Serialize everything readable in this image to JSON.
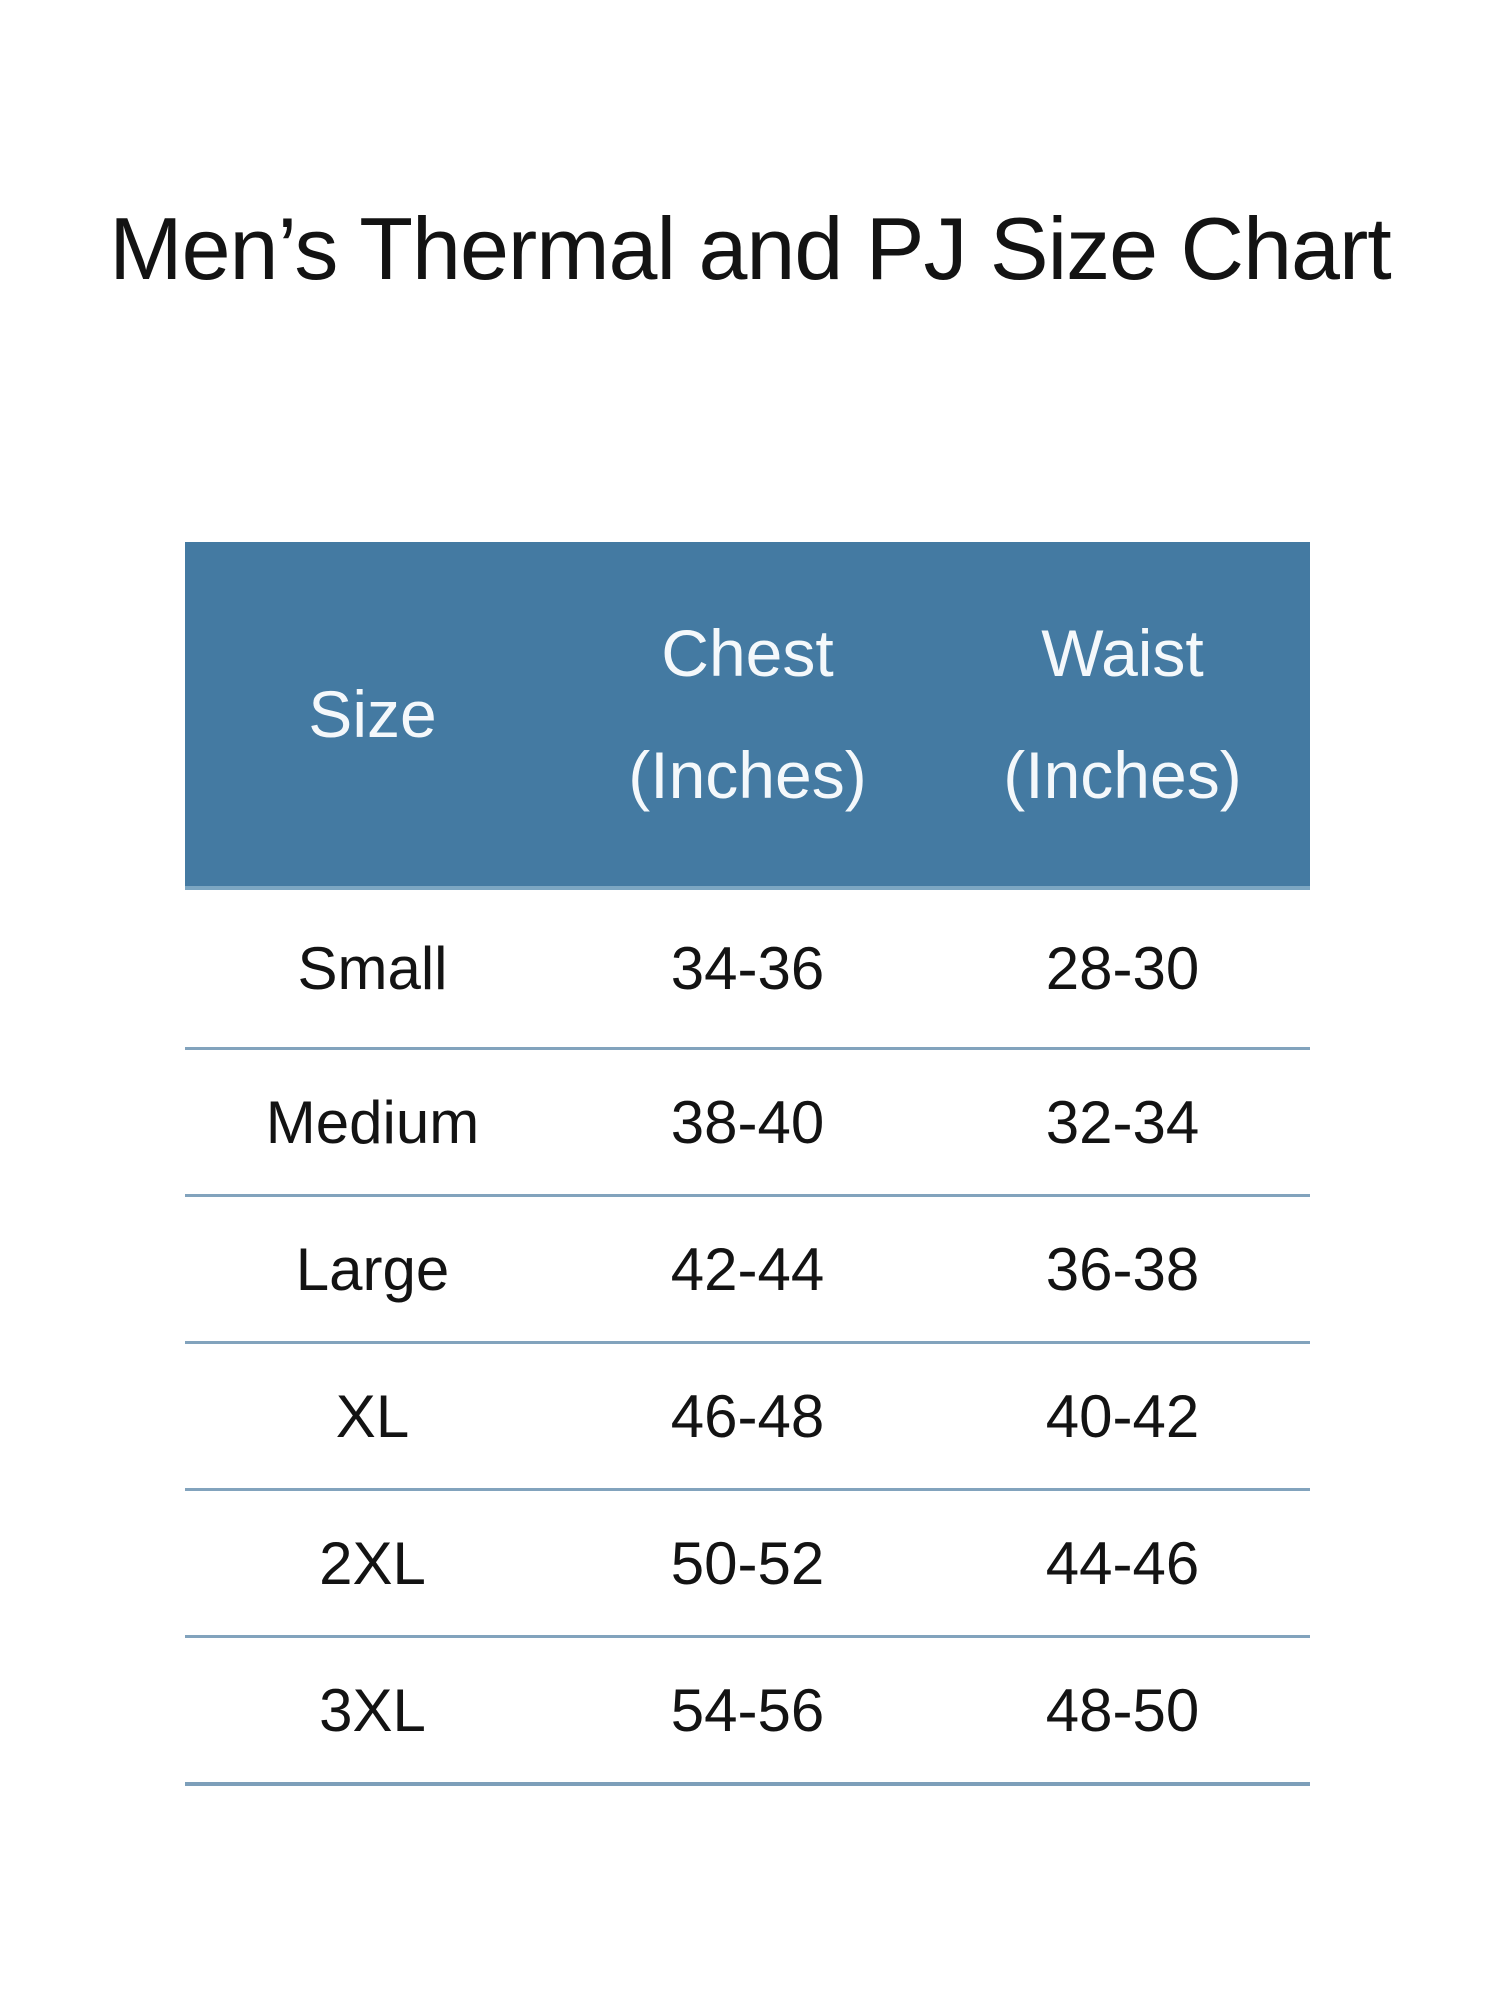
{
  "title": "Men’s Thermal and PJ Size Chart",
  "colors": {
    "header_bg": "#447aa2",
    "header_text": "#f4f8fb",
    "divider": "#82a3bd",
    "body_text": "#131313"
  },
  "table": {
    "header": {
      "size_label": "Size",
      "chest_line1": "Chest",
      "chest_line2": "(Inches)",
      "waist_line1": "Waist",
      "waist_line2": "(Inches)"
    },
    "rows": [
      {
        "size": "Small",
        "chest": "34-36",
        "waist": "28-30"
      },
      {
        "size": "Medium",
        "chest": "38-40",
        "waist": "32-34"
      },
      {
        "size": "Large",
        "chest": "42-44",
        "waist": "36-38"
      },
      {
        "size": "XL",
        "chest": "46-48",
        "waist": "40-42"
      },
      {
        "size": "2XL",
        "chest": "50-52",
        "waist": "44-46"
      },
      {
        "size": "3XL",
        "chest": "54-56",
        "waist": "48-50"
      }
    ]
  },
  "chart_data": {
    "type": "table",
    "title": "Men’s Thermal and PJ Size Chart",
    "columns": [
      "Size",
      "Chest (Inches)",
      "Waist (Inches)"
    ],
    "rows": [
      [
        "Small",
        "34-36",
        "28-30"
      ],
      [
        "Medium",
        "38-40",
        "32-34"
      ],
      [
        "Large",
        "42-44",
        "36-38"
      ],
      [
        "XL",
        "46-48",
        "40-42"
      ],
      [
        "2XL",
        "50-52",
        "44-46"
      ],
      [
        "3XL",
        "54-56",
        "48-50"
      ]
    ],
    "layout": {
      "header_background": "#447aa2",
      "header_text_color": "#f4f8fb",
      "row_divider_color": "#82a3bd",
      "grid": "horizontal-rules-only"
    }
  }
}
